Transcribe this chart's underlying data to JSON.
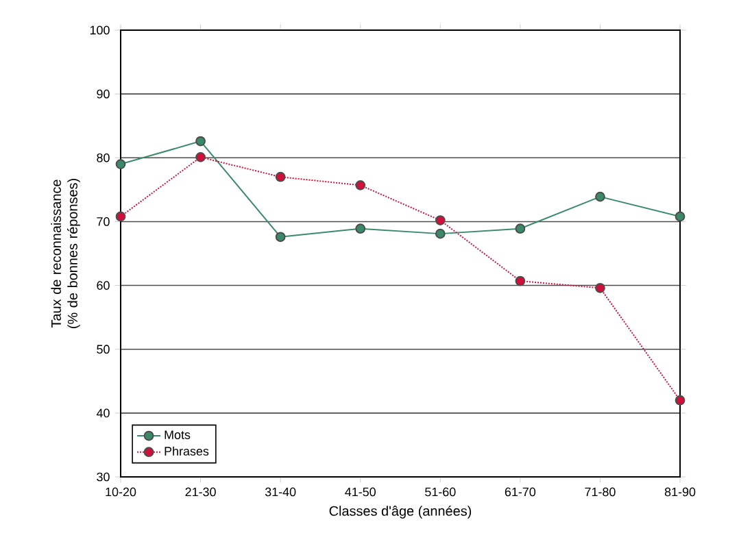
{
  "chart_data": {
    "type": "line",
    "xlabel": "Classes d'âge (années)",
    "ylabel": "Taux de reconnaissance (% de bonnes réponses)",
    "categories": [
      "10-20",
      "21-30",
      "31-40",
      "41-50",
      "51-60",
      "61-70",
      "71-80",
      "81-90"
    ],
    "series": [
      {
        "name": "Mots",
        "color": "#3a8a6a",
        "line_style": "solid",
        "values": [
          79.0,
          82.6,
          67.6,
          68.9,
          68.1,
          68.9,
          73.9,
          70.8
        ]
      },
      {
        "name": "Phrases",
        "color": "#d0103a",
        "line_style": "dotted",
        "values": [
          70.8,
          80.1,
          77.0,
          75.7,
          70.2,
          60.7,
          59.6,
          42.0
        ]
      }
    ],
    "ylim": [
      30,
      100
    ],
    "yticks": [
      30,
      40,
      50,
      60,
      70,
      80,
      90,
      100
    ],
    "grid": "y",
    "legend": "bottom left",
    "marker": "circle"
  }
}
